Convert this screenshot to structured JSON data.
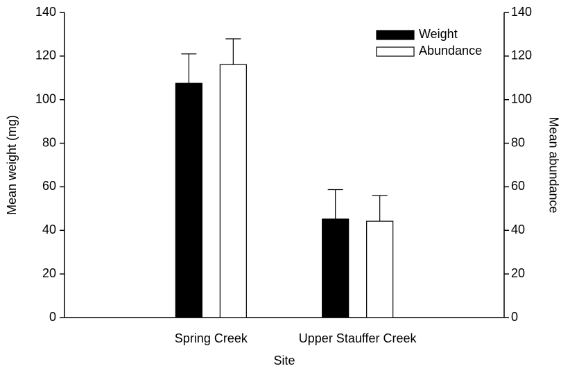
{
  "chart_data": {
    "type": "bar",
    "x_label": "Site",
    "y_label": "Mean weight (mg)",
    "y2_label": "Mean abundance",
    "categories": [
      "Spring Creek",
      "Upper Stauffer Creek"
    ],
    "series": [
      {
        "name": "Weight",
        "color": "#000000",
        "values": [
          107.5,
          45.2
        ],
        "errors": [
          13.5,
          13.5
        ]
      },
      {
        "name": "Abundance",
        "color": "#ffffff",
        "axis": "y2",
        "values": [
          116.1,
          44.2
        ],
        "errors": [
          11.8,
          11.8
        ]
      }
    ],
    "ylim": [
      0,
      140
    ],
    "yticks": [
      0,
      20,
      40,
      60,
      80,
      100,
      120,
      140
    ],
    "y2lim": [
      0,
      140
    ],
    "y2ticks": [
      0,
      20,
      40,
      60,
      80,
      100,
      120,
      140
    ],
    "legend": "upper right",
    "grid": false
  }
}
